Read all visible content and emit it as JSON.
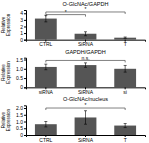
{
  "chart_data": [
    {
      "type": "bar",
      "title": "O-GlcNAc/GAPDH",
      "categories": [
        "CTRL",
        "SiRNA",
        "T"
      ],
      "values": [
        3.2,
        0.9,
        0.3
      ],
      "errors": [
        0.5,
        0.3,
        0.1
      ],
      "color": "#555555",
      "ylabel": "Relative\nExpression",
      "ylim": [
        0,
        4.5
      ],
      "yticks": [
        0,
        1,
        2,
        3,
        4
      ],
      "sig_lines": [
        {
          "x1": 0,
          "x2": 1,
          "y": 3.8,
          "label": "*"
        },
        {
          "x1": 0,
          "x2": 2,
          "y": 4.2,
          "label": "*"
        }
      ]
    },
    {
      "type": "bar",
      "title": "GAPDH/GAPDH",
      "categories": [
        "siRNA",
        "SiRNA",
        "si"
      ],
      "values": [
        1.1,
        1.2,
        1.0
      ],
      "errors": [
        0.15,
        0.12,
        0.18
      ],
      "color": "#555555",
      "ylabel": "Relative\nExpression",
      "ylim": [
        0,
        1.6
      ],
      "yticks": [
        0,
        0.5,
        {
          "value": 1,
          "label": "1.0"
        },
        1.5
      ],
      "sig_lines": [
        {
          "x1": 0,
          "x2": 2,
          "y": 1.45,
          "label": "n.s."
        }
      ]
    },
    {
      "type": "bar",
      "title": "O-GlcNAc/nucleus",
      "categories": [
        "CTRL",
        "SiRNA",
        "T"
      ],
      "values": [
        0.8,
        1.3,
        0.7
      ],
      "errors": [
        0.2,
        0.5,
        0.15
      ],
      "color": "#555555",
      "ylabel": "Relative\nExpression",
      "ylim": [
        0,
        2.2
      ],
      "yticks": [
        0,
        0.5,
        {
          "value": 1,
          "label": "1.0"
        },
        1.5,
        {
          "value": 2,
          "label": "2.0"
        }
      ],
      "sig_lines": [
        {
          "x1": 0,
          "x2": 2,
          "y": 2.0,
          "label": "*"
        }
      ]
    }
  ]
}
